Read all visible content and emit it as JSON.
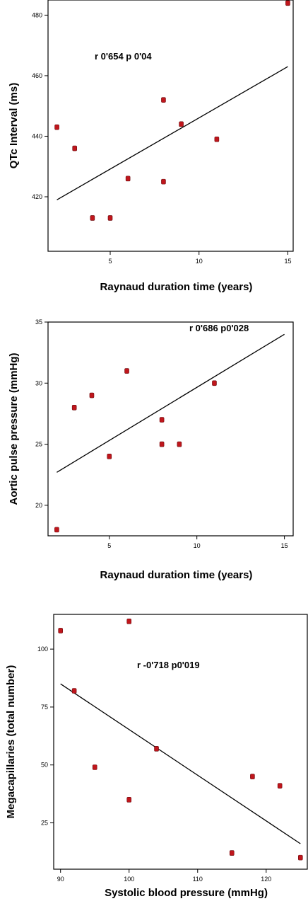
{
  "chart_data": [
    {
      "type": "scatter",
      "xlabel": "Raynaud duration time (years)",
      "ylabel": "QTc Interval (ms)",
      "annotation": "r 0'654  p 0'04",
      "xlim": [
        1.5,
        15.3
      ],
      "ylim": [
        402,
        485
      ],
      "xticks": [
        5,
        10,
        15
      ],
      "xtick_labels": [
        "5",
        "10",
        "15"
      ],
      "yticks": [
        420,
        440,
        460,
        480
      ],
      "ytick_labels": [
        "420",
        "440",
        "460",
        "480"
      ],
      "points": [
        {
          "x": 2,
          "y": 443
        },
        {
          "x": 3,
          "y": 436
        },
        {
          "x": 4,
          "y": 413
        },
        {
          "x": 5,
          "y": 413
        },
        {
          "x": 6,
          "y": 426
        },
        {
          "x": 8,
          "y": 425
        },
        {
          "x": 8,
          "y": 452
        },
        {
          "x": 9,
          "y": 444
        },
        {
          "x": 11,
          "y": 439
        },
        {
          "x": 15,
          "y": 484
        }
      ],
      "fit_line": {
        "x": [
          2,
          15
        ],
        "y": [
          419,
          463
        ]
      },
      "grid": false
    },
    {
      "type": "scatter",
      "xlabel": "Raynaud duration time (years)",
      "ylabel": "Aortic pulse pressure (mmHg)",
      "annotation": "r 0'686  p0'028",
      "xlim": [
        1.5,
        15.5
      ],
      "ylim": [
        17.5,
        35
      ],
      "xticks": [
        5,
        10,
        15
      ],
      "xtick_labels": [
        "5",
        "10",
        "15"
      ],
      "yticks": [
        20,
        25,
        30,
        35
      ],
      "ytick_labels": [
        "20",
        "25",
        "30",
        "35"
      ],
      "points": [
        {
          "x": 2,
          "y": 18
        },
        {
          "x": 3,
          "y": 28
        },
        {
          "x": 4,
          "y": 29
        },
        {
          "x": 5,
          "y": 24
        },
        {
          "x": 6,
          "y": 31
        },
        {
          "x": 8,
          "y": 27
        },
        {
          "x": 8,
          "y": 25
        },
        {
          "x": 9,
          "y": 25
        },
        {
          "x": 11,
          "y": 30
        }
      ],
      "fit_line": {
        "x": [
          2,
          15
        ],
        "y": [
          22.7,
          34
        ]
      },
      "grid": false
    },
    {
      "type": "scatter",
      "xlabel": "Systolic blood pressure (mmHg)",
      "ylabel": "Megacapillaries (total number)",
      "annotation": "r -0'718  p0'019",
      "xlim": [
        89,
        126
      ],
      "ylim": [
        5,
        115
      ],
      "xticks": [
        90,
        100,
        110,
        120
      ],
      "xtick_labels": [
        "90",
        "100",
        "110",
        "120"
      ],
      "yticks": [
        25,
        50,
        75,
        100
      ],
      "ytick_labels": [
        "25",
        "50",
        "75",
        "100"
      ],
      "points": [
        {
          "x": 90,
          "y": 108
        },
        {
          "x": 92,
          "y": 82
        },
        {
          "x": 95,
          "y": 49
        },
        {
          "x": 100,
          "y": 112
        },
        {
          "x": 100,
          "y": 35
        },
        {
          "x": 104,
          "y": 57
        },
        {
          "x": 115,
          "y": 12
        },
        {
          "x": 118,
          "y": 45
        },
        {
          "x": 122,
          "y": 41
        },
        {
          "x": 125,
          "y": 10
        }
      ],
      "fit_line": {
        "x": [
          90,
          125
        ],
        "y": [
          85,
          16
        ]
      },
      "grid": false
    }
  ]
}
